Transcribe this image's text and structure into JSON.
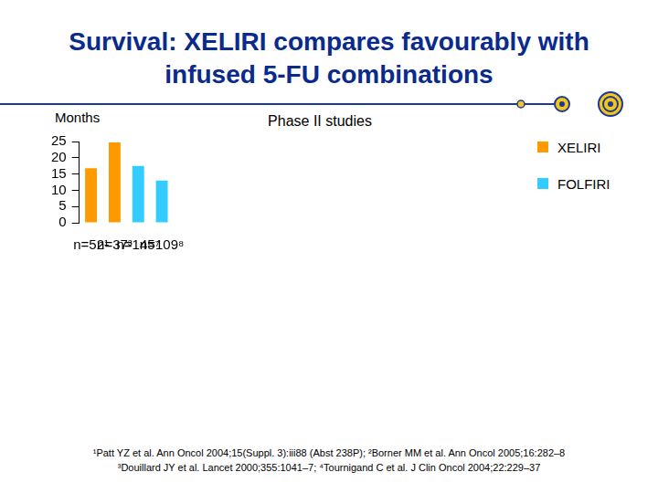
{
  "chart_data": {
    "type": "bar",
    "title": "Survival: XELIRI compares favourably with infused 5-FU combinations",
    "subtitle": "Phase II studies",
    "y_label": "Months",
    "categories": [
      "n=52¹",
      "n=37³",
      "n=145⁷",
      "n=109⁸"
    ],
    "series": [
      {
        "name": "XELIRI",
        "color": "#FF9900",
        "values": [
          16.8,
          24.7,
          null,
          null
        ]
      },
      {
        "name": "FOLFIRI",
        "color": "#33CCFF",
        "values": [
          null,
          null,
          17.5,
          13
        ]
      }
    ],
    "ylim": [
      0,
      25
    ],
    "yticks": [
      0,
      5,
      10,
      15,
      20,
      25
    ],
    "grid": false,
    "legend": "upper right",
    "footnotes": [
      "¹Patt YZ et al. Ann Oncol 2004;15(Suppl. 3):iii88 (Abst 238P); ²Borner MM et al. Ann Oncol 2005;16:282–8",
      "³Douillard JY et al. Lancet 2000;355:1041–7; ⁴Tournigand C et al. J Clin Oncol 2004;22:229–37"
    ]
  }
}
